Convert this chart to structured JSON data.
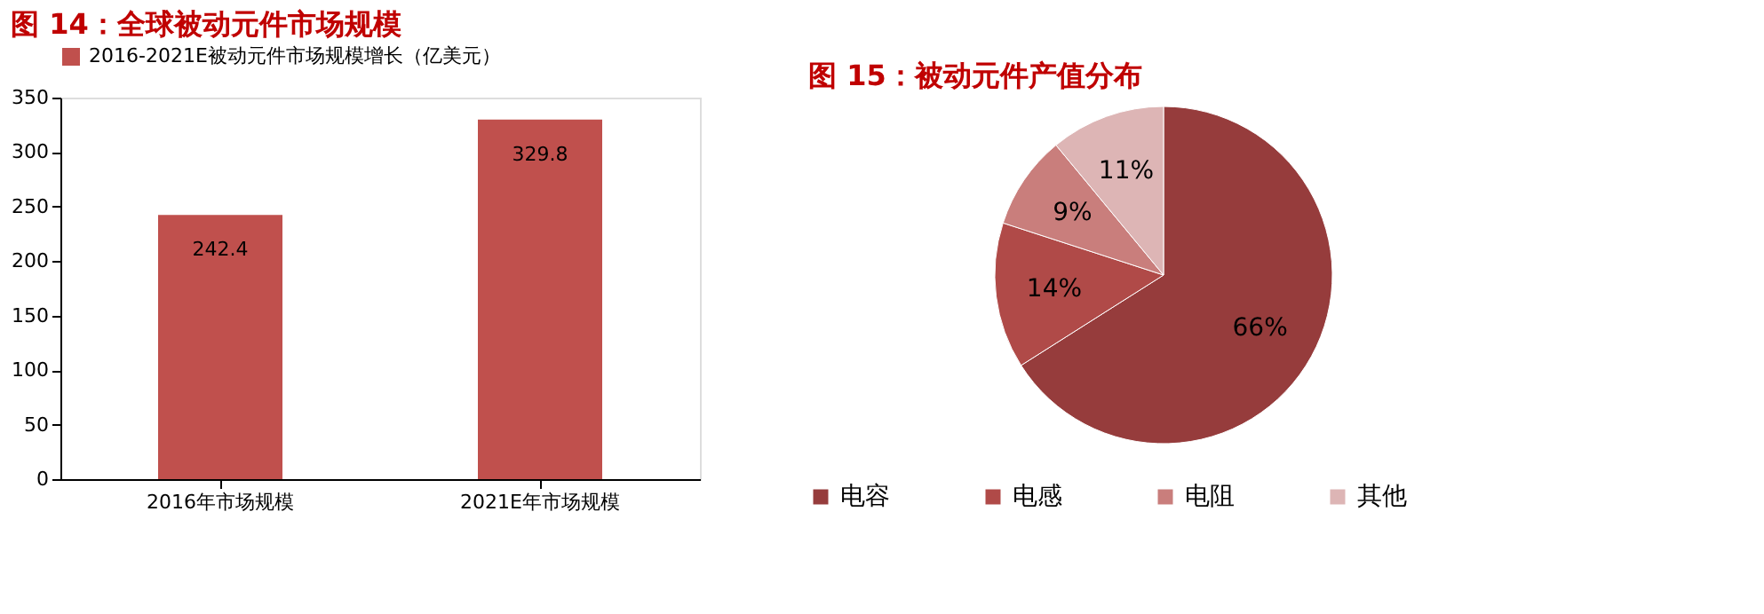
{
  "chart_data": [
    {
      "type": "bar",
      "title": "图 14：全球被动元件市场规模",
      "categories": [
        "2016年市场规模",
        "2021E年市场规模"
      ],
      "series": [
        {
          "name": "2016-2021E被动元件市场规模增长（亿美元）",
          "color": "#c0504d",
          "values": [
            242.4,
            329.8
          ]
        }
      ],
      "ylim": [
        0,
        350
      ],
      "yticks": [
        0,
        50,
        100,
        150,
        200,
        250,
        300,
        350
      ],
      "grid": false,
      "legend": "top",
      "data_labels": true
    },
    {
      "type": "pie",
      "title": "图 15：被动元件产值分布",
      "categories": [
        "电容",
        "电感",
        "电阻",
        "其他"
      ],
      "values": [
        66,
        14,
        9,
        11
      ],
      "colors": [
        "#963c3c",
        "#b04a48",
        "#c97e7c",
        "#ddb5b5"
      ],
      "legend": "bottom",
      "value_labels": [
        "66%",
        "14%",
        "9%",
        "11%"
      ]
    }
  ]
}
